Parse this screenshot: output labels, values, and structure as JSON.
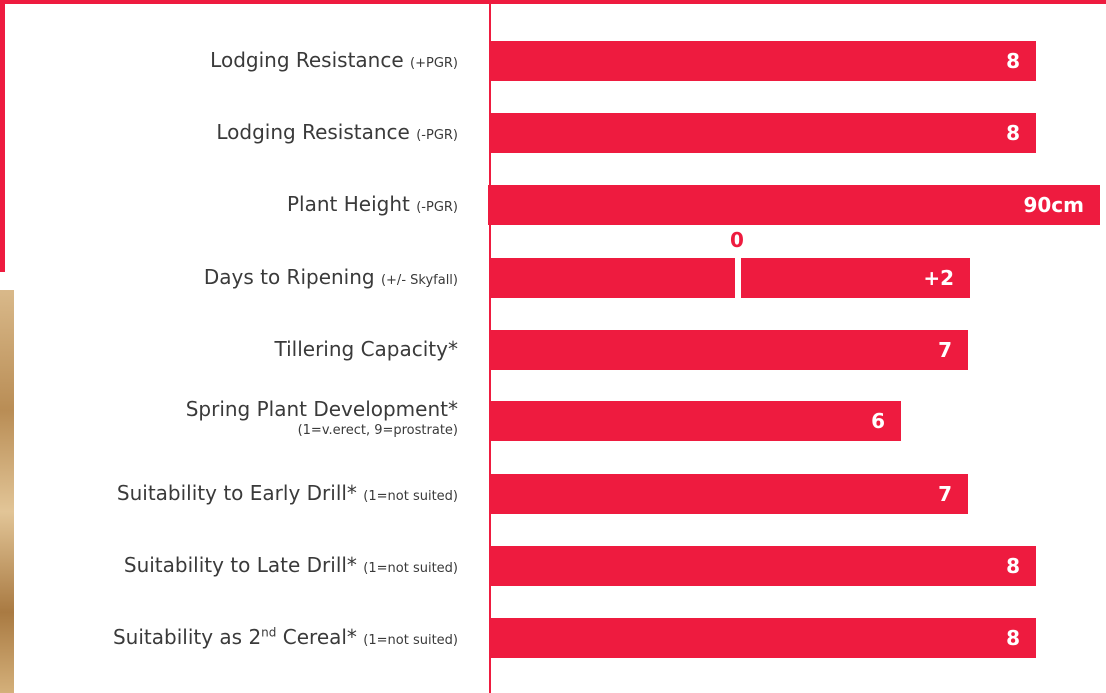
{
  "rows": [
    {
      "label": "Lodging Resistance",
      "note": "(+PGR)",
      "value": "8"
    },
    {
      "label": "Lodging Resistance",
      "note": "(-PGR)",
      "value": "8"
    },
    {
      "label": "Plant Height",
      "note": "(-PGR)",
      "value": "90cm"
    },
    {
      "label": "Days to Ripening",
      "note": "(+/- Skyfall)",
      "value": "+2",
      "marker": "0"
    },
    {
      "label": "Tillering Capacity*",
      "value": "7"
    },
    {
      "label": "Spring Plant Development*",
      "note_line": "(1=v.erect, 9=prostrate)",
      "value": "6"
    },
    {
      "label": "Suitability to Early Drill*",
      "note": "(1=not suited)",
      "value": "7"
    },
    {
      "label": "Suitability to Late Drill*",
      "note": "(1=not suited)",
      "value": "8"
    },
    {
      "label": "Suitability as 2",
      "sup": "nd",
      "label_end": " Cereal*",
      "note": "(1=not suited)",
      "value": "8"
    }
  ]
}
